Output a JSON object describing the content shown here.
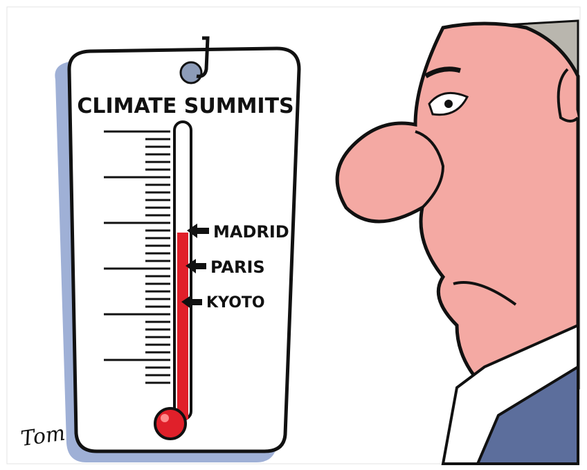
{
  "cartoon": {
    "title": "CLIMATE SUMMITS",
    "labels": [
      "MADRID",
      "PARIS",
      "KYOTO"
    ],
    "signature": "Tom"
  }
}
